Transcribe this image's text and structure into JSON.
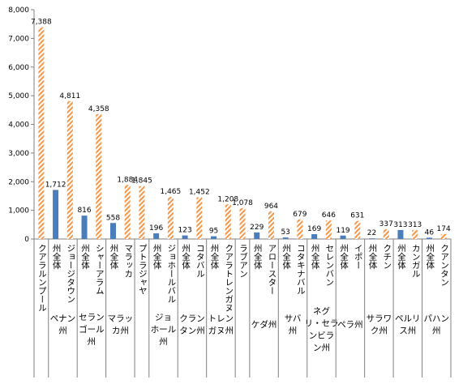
{
  "chart_data": {
    "type": "bar",
    "ylim": [
      0,
      8000
    ],
    "yticks": [
      0,
      1000,
      2000,
      3000,
      4000,
      5000,
      6000,
      7000,
      8000
    ],
    "ytick_labels": [
      "0",
      "1,000",
      "2,000",
      "3,000",
      "4,000",
      "5,000",
      "6,000",
      "7,000",
      "8,000"
    ],
    "bars": [
      {
        "label": "クアラルンプール",
        "value": 7388,
        "value_label": "7,388",
        "kind": "city"
      },
      {
        "label": "州全体",
        "value": 1712,
        "value_label": "1,712",
        "kind": "state"
      },
      {
        "label": "ジョージタウン",
        "value": 4811,
        "value_label": "4,811",
        "kind": "city"
      },
      {
        "label": "州全体",
        "value": 816,
        "value_label": "816",
        "kind": "state"
      },
      {
        "label": "シャーアラム",
        "value": 4358,
        "value_label": "4,358",
        "kind": "city"
      },
      {
        "label": "州全体",
        "value": 558,
        "value_label": "558",
        "kind": "state"
      },
      {
        "label": "マラッカ",
        "value": 1884,
        "value_label": "1,884",
        "kind": "city"
      },
      {
        "label": "プトラジャヤ",
        "value": 1845,
        "value_label": "1,845",
        "kind": "city"
      },
      {
        "label": "州全体",
        "value": 196,
        "value_label": "196",
        "kind": "state"
      },
      {
        "label": "ジョホールバル",
        "value": 1465,
        "value_label": "1,465",
        "kind": "city"
      },
      {
        "label": "州全体",
        "value": 123,
        "value_label": "123",
        "kind": "state"
      },
      {
        "label": "コタバル",
        "value": 1452,
        "value_label": "1,452",
        "kind": "city"
      },
      {
        "label": "州全体",
        "value": 95,
        "value_label": "95",
        "kind": "state"
      },
      {
        "label": "クアラトレンガヌ",
        "value": 1208,
        "value_label": "1,208",
        "kind": "city"
      },
      {
        "label": "ラブアン",
        "value": 1078,
        "value_label": "1,078",
        "kind": "city"
      },
      {
        "label": "州全体",
        "value": 229,
        "value_label": "229",
        "kind": "state"
      },
      {
        "label": "アロースター",
        "value": 964,
        "value_label": "964",
        "kind": "city"
      },
      {
        "label": "州全体",
        "value": 53,
        "value_label": "53",
        "kind": "state"
      },
      {
        "label": "コタキナバル",
        "value": 679,
        "value_label": "679",
        "kind": "city"
      },
      {
        "label": "州全体",
        "value": 169,
        "value_label": "169",
        "kind": "state"
      },
      {
        "label": "セレンバン",
        "value": 646,
        "value_label": "646",
        "kind": "city"
      },
      {
        "label": "州全体",
        "value": 119,
        "value_label": "119",
        "kind": "state"
      },
      {
        "label": "イポー",
        "value": 631,
        "value_label": "631",
        "kind": "city"
      },
      {
        "label": "州全体",
        "value": 22,
        "value_label": "22",
        "kind": "state"
      },
      {
        "label": "クチン",
        "value": 337,
        "value_label": "337",
        "kind": "city"
      },
      {
        "label": "州全体",
        "value": 313,
        "value_label": "313",
        "kind": "state"
      },
      {
        "label": "カンガル",
        "value": 313,
        "value_label": "313",
        "kind": "city"
      },
      {
        "label": "州全体",
        "value": 46,
        "value_label": "46",
        "kind": "state"
      },
      {
        "label": "クアンタン",
        "value": 174,
        "value_label": "174",
        "kind": "city"
      }
    ],
    "groups": [
      {
        "label": "",
        "lines": [],
        "from": 0,
        "to": 0
      },
      {
        "label": "ペナン州",
        "lines": [
          "ペナン",
          "州"
        ],
        "from": 1,
        "to": 2
      },
      {
        "label": "セランゴール州",
        "lines": [
          "セラン",
          "ゴール",
          "州"
        ],
        "from": 3,
        "to": 4
      },
      {
        "label": "マラッカ州",
        "lines": [
          "マラッ",
          "カ州"
        ],
        "from": 5,
        "to": 6
      },
      {
        "label": "",
        "lines": [],
        "from": 7,
        "to": 7
      },
      {
        "label": "ジョホール州",
        "lines": [
          "ジョ",
          "ホール",
          "州"
        ],
        "from": 8,
        "to": 9
      },
      {
        "label": "クランタン州",
        "lines": [
          "クラン",
          "タン州"
        ],
        "from": 10,
        "to": 11
      },
      {
        "label": "トレンガヌ州",
        "lines": [
          "トレン",
          "ガヌ州"
        ],
        "from": 12,
        "to": 13
      },
      {
        "label": "",
        "lines": [],
        "from": 14,
        "to": 14
      },
      {
        "label": "ケダ州",
        "lines": [
          "ケダ州"
        ],
        "from": 15,
        "to": 16
      },
      {
        "label": "サバ州",
        "lines": [
          "サバ",
          "州"
        ],
        "from": 17,
        "to": 18
      },
      {
        "label": "ネグリ・セランビラン州",
        "lines": [
          "ネグ",
          "リ・セラ",
          "ンビラ",
          "ン州"
        ],
        "from": 19,
        "to": 20
      },
      {
        "label": "ペラ州",
        "lines": [
          "ペラ州"
        ],
        "from": 21,
        "to": 22
      },
      {
        "label": "サラワク州",
        "lines": [
          "サラワ",
          "ク州"
        ],
        "from": 23,
        "to": 24
      },
      {
        "label": "ペルリス州",
        "lines": [
          "ペルリ",
          "ス州"
        ],
        "from": 25,
        "to": 26
      },
      {
        "label": "パハン州",
        "lines": [
          "パハン",
          "州"
        ],
        "from": 27,
        "to": 28
      }
    ],
    "colors": {
      "state": "#4a7ebb",
      "city_stripe": "#f79646",
      "axis": "#808080"
    },
    "grid": false,
    "legend": "none"
  }
}
